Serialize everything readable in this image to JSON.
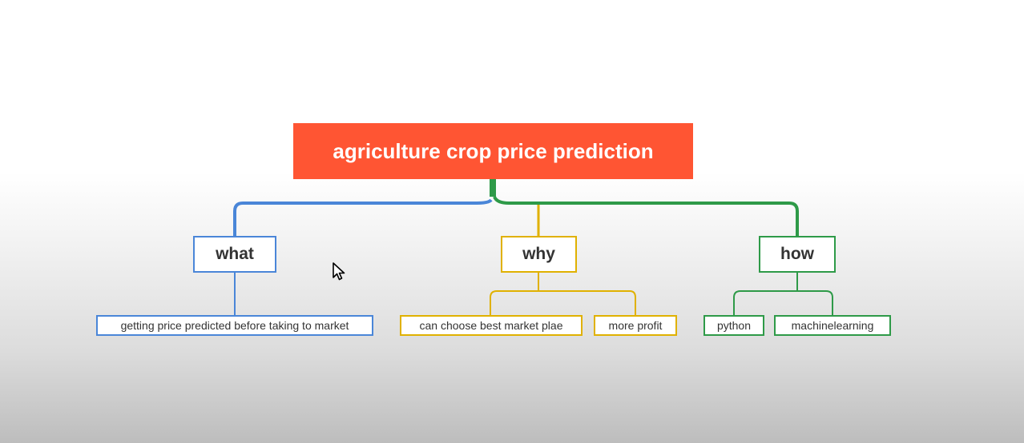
{
  "root": {
    "label": "agriculture crop price prediction",
    "color": "#ff5533"
  },
  "branches": [
    {
      "label": "what",
      "color": "#4a86d8",
      "children": [
        "getting price predicted before taking to market"
      ]
    },
    {
      "label": "why",
      "color": "#e0b100",
      "children": [
        "can choose best market plae",
        "more profit"
      ]
    },
    {
      "label": "how",
      "color": "#2e9a48",
      "children": [
        "python",
        "machinelearning"
      ]
    }
  ]
}
